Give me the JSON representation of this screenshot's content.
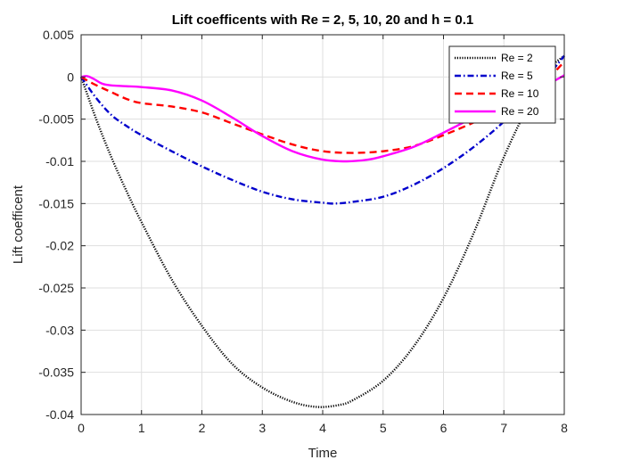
{
  "chart_data": {
    "type": "line",
    "title": "Lift coefficents with Re = 2, 5, 10, 20 and h = 0.1",
    "xlabel": "Time",
    "ylabel": "Lift coefficent",
    "xlim": [
      0,
      8
    ],
    "ylim": [
      -0.04,
      0.005
    ],
    "xticks": [
      0,
      1,
      2,
      3,
      4,
      5,
      6,
      7,
      8
    ],
    "yticks": [
      0.005,
      0,
      -0.005,
      -0.01,
      -0.015,
      -0.02,
      -0.025,
      -0.03,
      -0.035,
      -0.04
    ],
    "xtick_labels": [
      "0",
      "1",
      "2",
      "3",
      "4",
      "5",
      "6",
      "7",
      "8"
    ],
    "ytick_labels": [
      "0.005",
      "0",
      "-0.005",
      "-0.01",
      "-0.015",
      "-0.02",
      "-0.025",
      "-0.03",
      "-0.035",
      "-0.04"
    ],
    "grid": true,
    "legend_position": "top-right",
    "series": [
      {
        "name": "Re = 2",
        "color": "#000000",
        "style": "dotted",
        "x": [
          0,
          0.25,
          0.5,
          0.75,
          1,
          1.5,
          2,
          2.5,
          3,
          3.5,
          3.9,
          4.25,
          4.5,
          5,
          5.5,
          6,
          6.5,
          7,
          7.5,
          7.75,
          8
        ],
        "y": [
          0,
          -0.005,
          -0.0095,
          -0.0135,
          -0.0172,
          -0.024,
          -0.0295,
          -0.034,
          -0.0368,
          -0.0385,
          -0.0391,
          -0.0389,
          -0.0383,
          -0.036,
          -0.032,
          -0.0262,
          -0.0185,
          -0.0095,
          -0.002,
          0.001,
          0.0025
        ]
      },
      {
        "name": "Re = 5",
        "color": "#0000cc",
        "style": "dashdot",
        "x": [
          0,
          0.25,
          0.5,
          0.75,
          1,
          1.5,
          2,
          2.5,
          3,
          3.5,
          4,
          4.2,
          4.5,
          5,
          5.5,
          6,
          6.5,
          7,
          7.5,
          8
        ],
        "y": [
          0,
          -0.0025,
          -0.0045,
          -0.0058,
          -0.0069,
          -0.0088,
          -0.0106,
          -0.0122,
          -0.0136,
          -0.0145,
          -0.0149,
          -0.015,
          -0.0148,
          -0.0142,
          -0.0128,
          -0.0108,
          -0.0083,
          -0.0053,
          -0.0018,
          0.0025
        ]
      },
      {
        "name": "Re = 10",
        "color": "#ff0000",
        "style": "dashed",
        "x": [
          0,
          0.2,
          0.5,
          0.75,
          1,
          1.5,
          2,
          2.5,
          3,
          3.5,
          4,
          4.5,
          5,
          5.5,
          6,
          6.5,
          7,
          7.5,
          8
        ],
        "y": [
          0,
          -0.0008,
          -0.0018,
          -0.0026,
          -0.0031,
          -0.0035,
          -0.0042,
          -0.0055,
          -0.0068,
          -0.008,
          -0.0088,
          -0.009,
          -0.0088,
          -0.0082,
          -0.0069,
          -0.0054,
          -0.0038,
          -0.0018,
          0.0018
        ]
      },
      {
        "name": "Re = 20",
        "color": "#ff00ff",
        "style": "solid",
        "x": [
          0,
          0.1,
          0.2,
          0.35,
          0.5,
          0.75,
          1,
          1.5,
          2,
          2.5,
          3,
          3.5,
          4,
          4.4,
          4.75,
          5,
          5.5,
          6,
          6.5,
          7,
          7.5,
          7.75,
          8
        ],
        "y": [
          0,
          0.0001,
          -0.0002,
          -0.0008,
          -0.001,
          -0.0011,
          -0.0012,
          -0.0016,
          -0.0028,
          -0.0048,
          -0.007,
          -0.0088,
          -0.0098,
          -0.01,
          -0.0098,
          -0.0094,
          -0.0083,
          -0.0066,
          -0.0048,
          -0.0032,
          -0.0017,
          -0.0008,
          0.0002
        ]
      }
    ]
  }
}
